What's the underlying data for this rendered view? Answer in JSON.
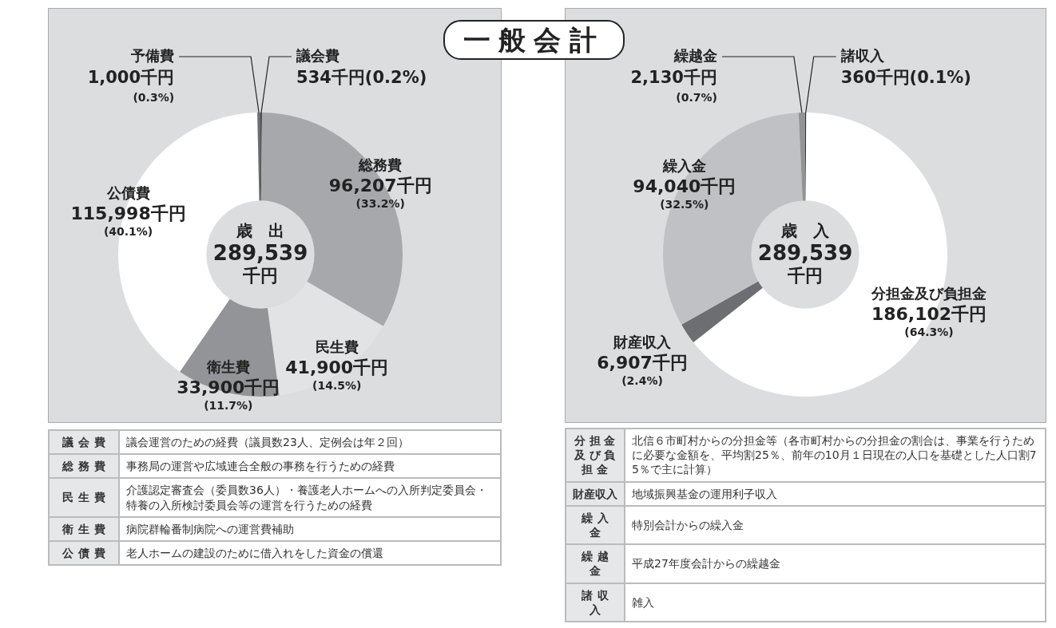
{
  "chart_data": [
    {
      "type": "donut",
      "title": "一般会計",
      "categories": [
        "議会費",
        "総務費",
        "民生費",
        "衛生費",
        "公債費",
        "予備費"
      ],
      "values": [
        534,
        96207,
        41900,
        33900,
        115998,
        1000
      ],
      "colors": [
        "#4d4e51",
        "#a7a8ab",
        "#e2e3e5",
        "#939497",
        "#ffffff",
        "#6d6e71"
      ],
      "value_labels": [
        "534千円(0.2%)",
        "96,207千円\n(33.2%)",
        "41,900千円\n(14.5%)",
        "33,900千円\n(11.7%)",
        "115,998千円\n(40.1%)",
        "1,000千円\n(0.3%)"
      ],
      "annotations": [
        "歳　出\n289,539\n千円",
        "議会費",
        "議会運営のための経費（議員数23人、定例会は年２回）",
        "総務費",
        "事務局の運営や広域連合全般の事務を行うための経費",
        "民生費",
        "介護認定審査会（委員数36人）・養護老人ホームへの入所判定委員会・特養の入所検討委員会等の運営を行うための経費",
        "衛生費",
        "病院群輪番制病院への運営費補助",
        "公債費",
        "老人ホームの建設のために借入れをした資金の償還"
      ]
    },
    {
      "type": "donut",
      "categories": [
        "諸収入",
        "分担金及び負担金",
        "財産収入",
        "繰入金",
        "繰越金"
      ],
      "values": [
        360,
        186102,
        6907,
        94040,
        2130
      ],
      "colors": [
        "#333335",
        "#ffffff",
        "#6d6e71",
        "#c0c1c4",
        "#939497"
      ],
      "value_labels": [
        "360千円(0.1%)",
        "186,102千円\n(64.3%)",
        "6,907千円\n(2.4%)",
        "94,040千円\n(32.5%)",
        "2,130千円\n(0.7%)"
      ],
      "annotations": [
        "歳　入\n289,539\n千円",
        "分担金及び負担金",
        "北信６市町村からの分担金等（各市町村からの分担金の割合は、事業を行うために必要な金額を、平均割25％、前年の10月１日現在の人口を基礎とした人口割75％で主に計算）",
        "財産収入",
        "地域振興基金の運用利子収入",
        "繰入金",
        "特別会計からの繰入金",
        "繰越金",
        "平成27年度会計からの繰越金",
        "諸収入",
        "雑入"
      ]
    }
  ]
}
